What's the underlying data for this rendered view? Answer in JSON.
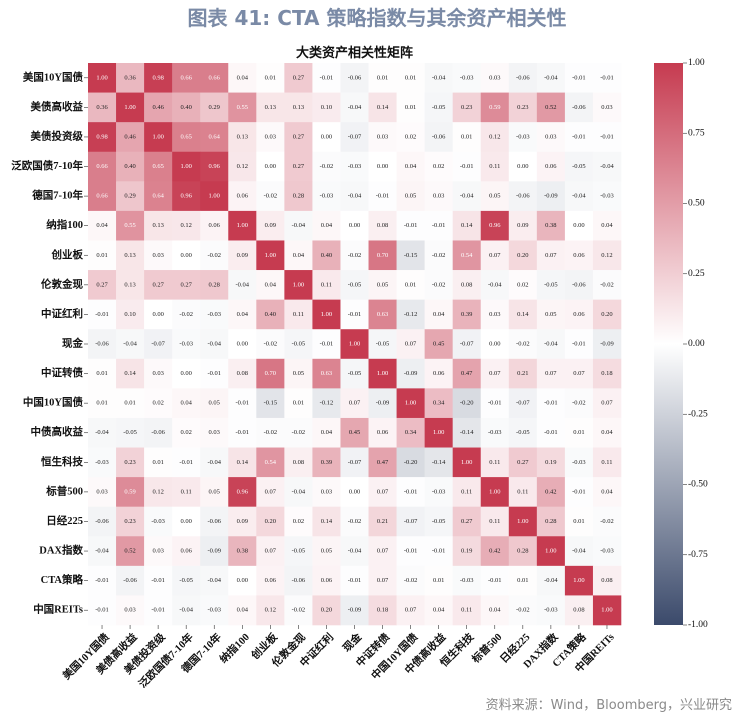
{
  "figure_title": "图表 41: CTA 策略指数与其余资产相关性",
  "source": "资料来源：Wind，Bloomberg，兴业研究",
  "chart_data": {
    "type": "heatmap",
    "title": "大类资产相关性矩阵",
    "labels": [
      "美国10Y国债",
      "美债高收益",
      "美债投资级",
      "泛欧国债7-10年",
      "德国7-10年",
      "纳指100",
      "创业板",
      "伦敦金现",
      "中证红利",
      "现金",
      "中证转债",
      "中国10Y国债",
      "中债高收益",
      "恒生科技",
      "标普500",
      "日经225",
      "DAX指数",
      "CTA策略",
      "中国REITs"
    ],
    "values": [
      [
        1.0,
        0.36,
        0.98,
        0.66,
        0.66,
        0.04,
        0.01,
        0.27,
        -0.01,
        -0.06,
        0.01,
        0.01,
        -0.04,
        -0.03,
        0.03,
        -0.06,
        -0.04,
        -0.01,
        -0.01
      ],
      [
        0.36,
        1.0,
        0.46,
        0.4,
        0.29,
        0.55,
        0.13,
        0.13,
        0.1,
        -0.04,
        0.14,
        0.01,
        -0.05,
        0.23,
        0.59,
        0.23,
        0.52,
        -0.06,
        0.03
      ],
      [
        0.98,
        0.46,
        1.0,
        0.65,
        0.64,
        0.13,
        0.03,
        0.27,
        -0.0,
        -0.07,
        0.03,
        0.02,
        -0.06,
        0.01,
        0.12,
        -0.03,
        0.03,
        -0.01,
        -0.01
      ],
      [
        0.66,
        0.4,
        0.65,
        1.0,
        0.96,
        0.12,
        -0.0,
        0.27,
        -0.02,
        -0.03,
        0.0,
        0.04,
        0.02,
        -0.01,
        0.11,
        -0.0,
        0.06,
        -0.05,
        -0.04
      ],
      [
        0.66,
        0.29,
        0.64,
        0.96,
        1.0,
        0.06,
        -0.02,
        0.28,
        -0.03,
        -0.04,
        -0.01,
        0.05,
        0.03,
        -0.04,
        0.05,
        -0.06,
        -0.09,
        -0.04,
        -0.03
      ],
      [
        0.04,
        0.55,
        0.13,
        0.12,
        0.06,
        1.0,
        0.09,
        -0.04,
        0.04,
        0.0,
        0.08,
        -0.01,
        -0.01,
        0.14,
        0.96,
        0.09,
        0.38,
        0.0,
        0.04
      ],
      [
        0.01,
        0.13,
        0.03,
        -0.0,
        -0.02,
        0.09,
        1.0,
        0.04,
        0.4,
        -0.02,
        0.7,
        -0.15,
        -0.02,
        0.54,
        0.07,
        0.2,
        0.07,
        0.06,
        0.12
      ],
      [
        0.27,
        0.13,
        0.27,
        0.27,
        0.28,
        -0.04,
        0.04,
        1.0,
        0.11,
        -0.05,
        0.05,
        0.01,
        -0.02,
        0.08,
        -0.04,
        0.02,
        -0.05,
        -0.06,
        -0.02
      ],
      [
        -0.01,
        0.1,
        -0.0,
        -0.02,
        -0.03,
        0.04,
        0.4,
        0.11,
        1.0,
        -0.01,
        0.63,
        -0.12,
        0.04,
        0.39,
        0.03,
        0.14,
        0.05,
        0.06,
        0.2
      ],
      [
        -0.06,
        -0.04,
        -0.07,
        -0.03,
        -0.04,
        0.0,
        -0.02,
        -0.05,
        -0.01,
        1.0,
        -0.05,
        0.07,
        0.45,
        -0.07,
        0.0,
        -0.02,
        -0.04,
        -0.01,
        -0.09
      ],
      [
        0.01,
        0.14,
        0.03,
        0.0,
        -0.01,
        0.08,
        0.7,
        0.05,
        0.63,
        -0.05,
        1.0,
        -0.09,
        0.06,
        0.47,
        0.07,
        0.21,
        0.07,
        0.07,
        0.18
      ],
      [
        0.01,
        0.01,
        0.02,
        0.04,
        0.05,
        -0.01,
        -0.15,
        0.01,
        -0.12,
        0.07,
        -0.09,
        1.0,
        0.34,
        -0.2,
        -0.01,
        -0.07,
        -0.01,
        -0.02,
        0.07
      ],
      [
        -0.04,
        -0.05,
        -0.06,
        0.02,
        0.03,
        -0.01,
        -0.02,
        -0.02,
        0.04,
        0.45,
        0.06,
        0.34,
        1.0,
        -0.14,
        -0.03,
        -0.05,
        -0.01,
        0.01,
        0.04
      ],
      [
        -0.03,
        0.23,
        0.01,
        -0.01,
        -0.04,
        0.14,
        0.54,
        0.08,
        0.39,
        -0.07,
        0.47,
        -0.2,
        -0.14,
        1.0,
        0.11,
        0.27,
        0.19,
        -0.03,
        0.11
      ],
      [
        0.03,
        0.59,
        0.12,
        0.11,
        0.05,
        0.96,
        0.07,
        -0.04,
        0.03,
        0.0,
        0.07,
        -0.01,
        -0.03,
        0.11,
        1.0,
        0.11,
        0.42,
        -0.01,
        0.04
      ],
      [
        -0.06,
        0.23,
        -0.03,
        -0.0,
        -0.06,
        0.09,
        0.2,
        0.02,
        0.14,
        -0.02,
        0.21,
        -0.07,
        -0.05,
        0.27,
        0.11,
        1.0,
        0.28,
        0.01,
        -0.02
      ],
      [
        -0.04,
        0.52,
        0.03,
        0.06,
        -0.09,
        0.38,
        0.07,
        -0.05,
        0.05,
        -0.04,
        0.07,
        -0.01,
        -0.01,
        0.19,
        0.42,
        0.28,
        1.0,
        -0.04,
        -0.03
      ],
      [
        -0.01,
        -0.06,
        -0.01,
        -0.05,
        -0.04,
        0.0,
        0.06,
        -0.06,
        0.06,
        -0.01,
        0.07,
        -0.02,
        0.01,
        -0.03,
        -0.01,
        0.01,
        -0.04,
        1.0,
        0.08
      ],
      [
        -0.01,
        0.03,
        -0.01,
        -0.04,
        -0.03,
        0.04,
        0.12,
        -0.02,
        0.2,
        -0.09,
        0.18,
        0.07,
        0.04,
        0.11,
        0.04,
        -0.02,
        -0.03,
        0.08,
        1.0
      ]
    ],
    "colorbar": {
      "range": [
        -1.0,
        1.0
      ],
      "ticks": [
        "1.00",
        "0.75",
        "0.50",
        "0.25",
        "0.00",
        "-0.25",
        "-0.50",
        "-0.75",
        "-1.00"
      ],
      "colors": {
        "positive": "#c63b50",
        "zero": "#ffffff",
        "negative": "#3b4a6b"
      }
    }
  }
}
